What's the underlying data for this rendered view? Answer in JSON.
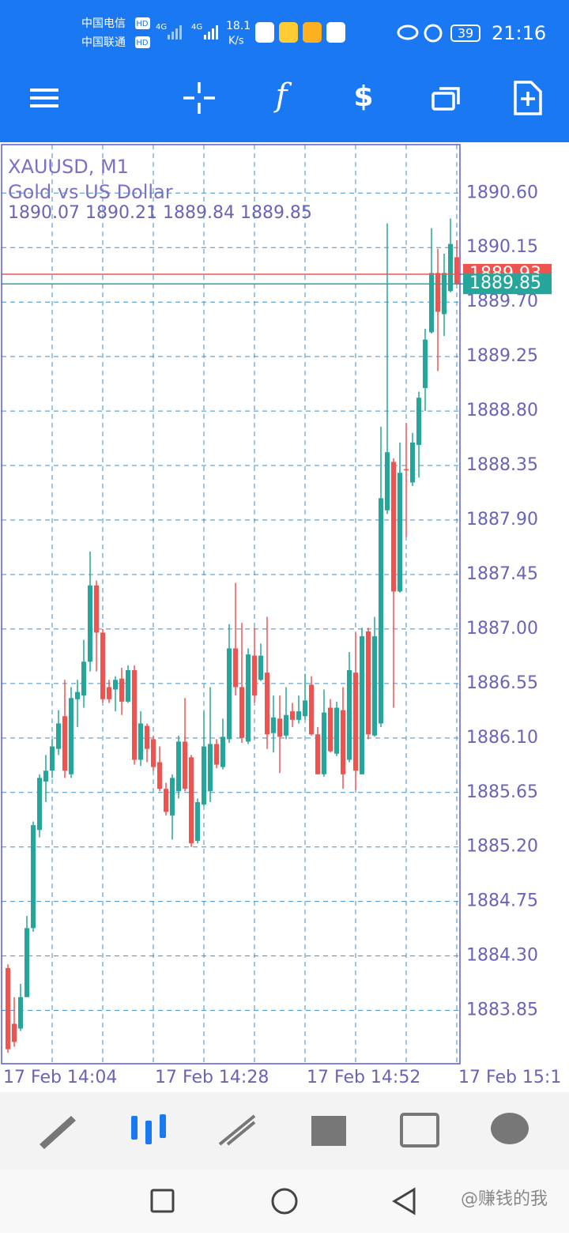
{
  "status_bar": {
    "carrier_1": "中国电信",
    "carrier_2": "中国联通",
    "hd": "HD",
    "network": "4G",
    "speed": "18.1",
    "speed_unit": "K/s",
    "battery": "39",
    "time": "21:16"
  },
  "watermark": "@赚钱的我",
  "chart_data": {
    "type": "candlestick",
    "symbol": "XAUUSD, M1",
    "description": "Gold vs US Dollar",
    "up_color": "#26a69a",
    "down_color": "#ef5350",
    "grid": true,
    "open": [
      1884.2,
      1883.74,
      1883.7,
      1883.96,
      1884.53,
      1885.34,
      1885.74,
      1885.83,
      1886.01,
      1886.28,
      1885.8,
      1886.42,
      1886.45,
      1886.73,
      1887.36,
      1886.97,
      1886.52,
      1886.5,
      1886.59,
      1886.4,
      1886.66,
      1885.92,
      1886.2,
      1886.09,
      1885.9,
      1885.68,
      1885.46,
      1885.66,
      1886.07,
      1885.94,
      1885.25,
      1885.55,
      1885.66,
      1886.05,
      1885.86,
      1886.09,
      1886.84,
      1886.52,
      1886.07,
      1886.78,
      1886.58,
      1886.64,
      1886.14,
      1886.26,
      1886.12,
      1886.32,
      1886.25,
      1886.28,
      1886.54,
      1886.13,
      1885.8,
      1886.35,
      1885.97,
      1886.33,
      1885.92,
      1886.64,
      1885.8,
      1886.98,
      1886.12,
      1886.22,
      1887.98,
      1888.38,
      1887.31,
      1888.32,
      1888.21,
      1888.52,
      1888.99,
      1889.45,
      1889.94,
      1889.6,
      1889.79,
      1890.07
    ],
    "high": [
      1884.23,
      1883.96,
      1884.07,
      1884.63,
      1885.41,
      1885.8,
      1885.96,
      1886.09,
      1886.33,
      1886.58,
      1886.52,
      1886.58,
      1886.91,
      1887.64,
      1887.4,
      1887.0,
      1886.58,
      1886.61,
      1886.68,
      1886.7,
      1886.7,
      1886.32,
      1886.22,
      1886.12,
      1886.03,
      1885.73,
      1885.8,
      1886.12,
      1886.43,
      1885.96,
      1885.6,
      1886.32,
      1886.52,
      1886.09,
      1886.26,
      1887.04,
      1887.38,
      1887.05,
      1886.84,
      1887.01,
      1886.88,
      1887.1,
      1886.45,
      1886.45,
      1886.52,
      1886.39,
      1886.45,
      1886.63,
      1886.61,
      1886.19,
      1886.5,
      1886.42,
      1886.4,
      1886.52,
      1886.81,
      1886.97,
      1887.01,
      1887.01,
      1887.1,
      1888.67,
      1890.35,
      1888.41,
      1888.54,
      1888.7,
      1888.62,
      1888.96,
      1889.48,
      1890.31,
      1890.14,
      1890.1,
      1890.39,
      1890.21
    ],
    "low": [
      1883.5,
      1883.55,
      1883.68,
      1883.96,
      1884.5,
      1885.28,
      1885.57,
      1885.77,
      1885.96,
      1885.77,
      1885.77,
      1886.19,
      1886.35,
      1886.65,
      1886.65,
      1886.39,
      1886.39,
      1886.32,
      1886.29,
      1886.39,
      1885.88,
      1885.87,
      1885.9,
      1885.83,
      1885.66,
      1885.46,
      1885.26,
      1885.6,
      1885.66,
      1885.2,
      1885.23,
      1885.54,
      1885.57,
      1885.85,
      1885.84,
      1886.06,
      1886.45,
      1886.06,
      1886.05,
      1886.39,
      1886.57,
      1886.01,
      1885.98,
      1885.81,
      1886.09,
      1886.19,
      1886.22,
      1886.25,
      1886.12,
      1885.8,
      1885.78,
      1885.98,
      1885.95,
      1885.68,
      1885.9,
      1885.67,
      1885.8,
      1886.09,
      1886.11,
      1886.19,
      1887.95,
      1886.35,
      1887.3,
      1887.76,
      1888.18,
      1888.25,
      1888.8,
      1889.44,
      1889.13,
      1889.42,
      1889.78,
      1889.84
    ],
    "close": [
      1883.53,
      1883.59,
      1883.96,
      1884.53,
      1885.38,
      1885.77,
      1885.83,
      1886.03,
      1886.22,
      1885.83,
      1886.43,
      1886.48,
      1886.73,
      1887.36,
      1886.97,
      1886.42,
      1886.42,
      1886.58,
      1886.4,
      1886.66,
      1885.92,
      1886.22,
      1886.01,
      1885.86,
      1885.68,
      1885.49,
      1885.77,
      1886.07,
      1885.68,
      1885.23,
      1885.57,
      1886.03,
      1886.05,
      1885.88,
      1886.11,
      1886.84,
      1886.52,
      1886.1,
      1886.79,
      1886.45,
      1886.78,
      1886.13,
      1886.27,
      1886.11,
      1886.29,
      1886.25,
      1886.32,
      1886.41,
      1886.13,
      1885.8,
      1886.31,
      1885.99,
      1886.35,
      1885.8,
      1886.66,
      1885.83,
      1886.94,
      1886.13,
      1886.94,
      1888.08,
      1888.46,
      1887.31,
      1888.29,
      1888.31,
      1888.54,
      1888.91,
      1889.39,
      1889.94,
      1889.62,
      1889.94,
      1890.18,
      1889.85
    ],
    "bid": 1889.85,
    "ask": 1889.93,
    "bid_color": "#26a69a",
    "ask_color": "#ef5350",
    "ylim": [
      1883.41,
      1891.0
    ],
    "yticks": [
      {
        "value": 1890.6,
        "label": "1890.60"
      },
      1890.15,
      {
        "value": 1889.7,
        "label": "1889.70"
      },
      1889.25,
      {
        "value": 1888.8,
        "label": "1888.80"
      },
      1888.35,
      {
        "value": 1887.9,
        "label": "1887.90"
      },
      1887.45,
      {
        "value": 1887.0,
        "label": "1887.00"
      },
      1886.55,
      {
        "value": 1886.1,
        "label": "1886.10"
      },
      1885.65,
      {
        "value": 1885.2,
        "label": "1885.20"
      },
      1884.75,
      {
        "value": 1884.3,
        "label": "1884.30"
      },
      1883.85
    ],
    "xticks": [
      "17 Feb 14:04",
      "17 Feb 14:28",
      "17 Feb 14:52",
      "17 Feb 15:1"
    ]
  }
}
